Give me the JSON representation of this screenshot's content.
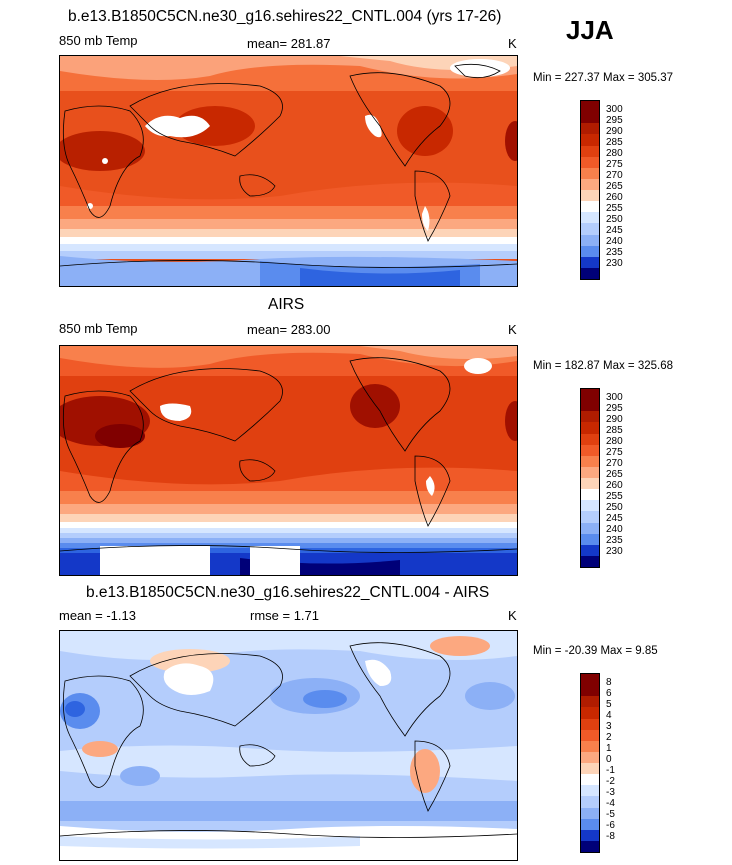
{
  "season": "JJA",
  "panels": [
    {
      "title": "b.e13.B1850C5CN.ne30_g16.sehires22_CNTL.004 (yrs 17-26)",
      "left_label": "850 mb Temp",
      "stat_label": "mean= 281.87",
      "units": "K",
      "minmax": "Min = 227.37 Max = 305.37",
      "colorbar_labels": [
        "300",
        "295",
        "290",
        "285",
        "280",
        "275",
        "270",
        "265",
        "260",
        "255",
        "250",
        "245",
        "240",
        "235",
        "230"
      ]
    },
    {
      "title": "AIRS",
      "left_label": "850 mb Temp",
      "stat_label": "mean= 283.00",
      "units": "K",
      "minmax": "Min = 182.87 Max = 325.68",
      "colorbar_labels": [
        "300",
        "295",
        "290",
        "285",
        "280",
        "275",
        "270",
        "265",
        "260",
        "255",
        "250",
        "245",
        "240",
        "235",
        "230"
      ]
    },
    {
      "title": "b.e13.B1850C5CN.ne30_g16.sehires22_CNTL.004 - AIRS",
      "left_label": "mean =  -1.13",
      "stat_label": "rmse =   1.71",
      "units": "K",
      "minmax": "Min = -20.39 Max =   9.85",
      "colorbar_labels": [
        "8",
        "6",
        "5",
        "4",
        "3",
        "2",
        "1",
        "0",
        "-1",
        "-2",
        "-3",
        "-4",
        "-5",
        "-6",
        "-8"
      ]
    }
  ],
  "colors": {
    "temp_scale": [
      "#800000",
      "#a01000",
      "#c82800",
      "#e04010",
      "#f05a28",
      "#f8804c",
      "#fca880",
      "#fdd4b8",
      "#ffffff",
      "#d6e6ff",
      "#b4cdfc",
      "#8cb0f6",
      "#5a8cee",
      "#2e64e0",
      "#1438c8",
      "#0a1e9c",
      "#000078"
    ],
    "diff_scale": [
      "#800000",
      "#a01000",
      "#c82800",
      "#e04010",
      "#f05a28",
      "#f8804c",
      "#fca880",
      "#fdd4b8",
      "#ffffff",
      "#d6e6ff",
      "#b4cdfc",
      "#8cb0f6",
      "#5a8cee",
      "#2e64e0",
      "#1438c8",
      "#0a1e9c",
      "#000078"
    ]
  }
}
